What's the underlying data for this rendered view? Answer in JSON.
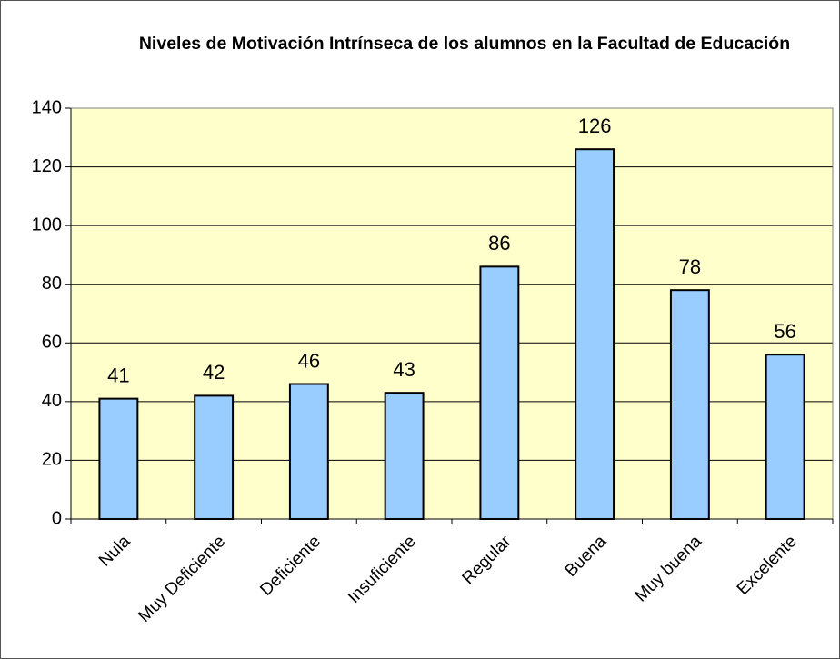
{
  "chart_data": {
    "type": "bar",
    "title": "Niveles de Motivación Intrínseca de los alumnos en la Facultad de Educación",
    "categories": [
      "Nula",
      "Muy Deficiente",
      "Deficiente",
      "Insuficiente",
      "Regular",
      "Buena",
      "Muy buena",
      "Excelente"
    ],
    "values": [
      41,
      42,
      46,
      43,
      86,
      126,
      78,
      56
    ],
    "color": "#99ccff",
    "ylim": [
      0,
      140
    ],
    "yticks": [
      0,
      20,
      40,
      60,
      80,
      100,
      120,
      140
    ],
    "grid": true
  }
}
